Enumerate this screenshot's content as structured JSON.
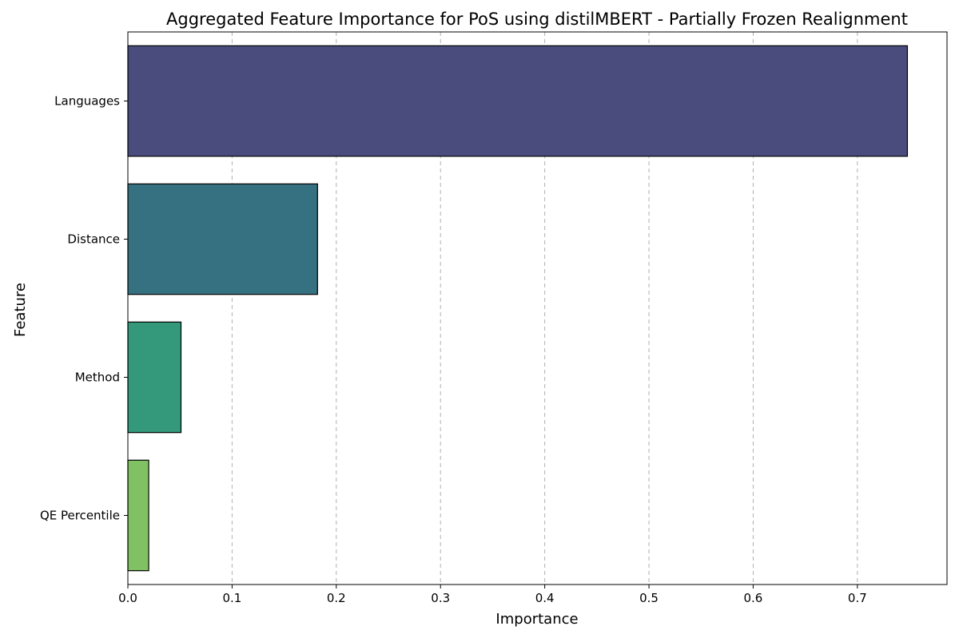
{
  "chart_data": {
    "type": "bar",
    "orientation": "horizontal",
    "title": "Aggregated Feature Importance for PoS using distilMBERT - Partially Frozen Realignment",
    "xlabel": "Importance",
    "ylabel": "Feature",
    "categories": [
      "Languages",
      "Distance",
      "Method",
      "QE Percentile"
    ],
    "values": [
      0.748,
      0.182,
      0.051,
      0.02
    ],
    "colors": [
      "#4a4c7d",
      "#367182",
      "#33997a",
      "#80c163"
    ],
    "xlim": [
      0.0,
      0.786
    ],
    "xticks": [
      0.0,
      0.1,
      0.2,
      0.3,
      0.4,
      0.5,
      0.6,
      0.7
    ],
    "xtick_labels": [
      "0.0",
      "0.1",
      "0.2",
      "0.3",
      "0.4",
      "0.5",
      "0.6",
      "0.7"
    ],
    "grid": "x-dashed"
  }
}
